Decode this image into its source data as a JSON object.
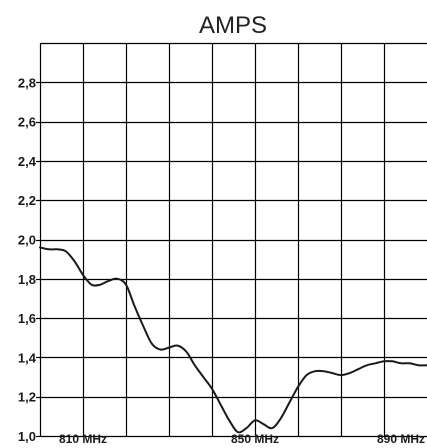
{
  "chart_data": {
    "type": "line",
    "title": "AMPS",
    "xlabel": "",
    "ylabel": "",
    "xlim": [
      800,
      890
    ],
    "ylim": [
      1.0,
      3.0
    ],
    "y_ticks": [
      1.0,
      1.2,
      1.4,
      1.6,
      1.8,
      2.0,
      2.2,
      2.4,
      2.6,
      2.8
    ],
    "y_tick_labels": [
      "1,0",
      "1,2",
      "1,4",
      "1,6",
      "1,8",
      "2,0",
      "2,2",
      "2,4",
      "2,6",
      "2,8"
    ],
    "x_ticks": [
      810,
      850,
      890
    ],
    "x_tick_labels": [
      "810 MHz",
      "850 MHz",
      "890 MHz"
    ],
    "grid": true,
    "line_color": "#1a1a1a",
    "grid_color": "#000000",
    "series": [
      {
        "x": [
          800,
          802,
          804,
          806,
          808,
          810,
          812,
          814,
          816,
          818,
          820,
          822,
          824,
          826,
          828,
          830,
          832,
          834,
          836,
          838,
          840,
          842,
          844,
          846,
          848,
          850,
          852,
          854,
          856,
          858,
          860,
          862,
          864,
          866,
          868,
          870,
          872,
          874,
          876,
          878,
          880,
          882,
          884,
          886,
          888,
          890
        ],
        "y": [
          1.96,
          1.95,
          1.95,
          1.94,
          1.89,
          1.82,
          1.77,
          1.77,
          1.79,
          1.8,
          1.77,
          1.66,
          1.56,
          1.47,
          1.44,
          1.45,
          1.46,
          1.43,
          1.36,
          1.3,
          1.24,
          1.16,
          1.08,
          1.02,
          1.04,
          1.08,
          1.06,
          1.04,
          1.09,
          1.17,
          1.25,
          1.31,
          1.33,
          1.33,
          1.32,
          1.31,
          1.32,
          1.34,
          1.36,
          1.37,
          1.38,
          1.38,
          1.37,
          1.37,
          1.36,
          1.36
        ]
      }
    ]
  }
}
